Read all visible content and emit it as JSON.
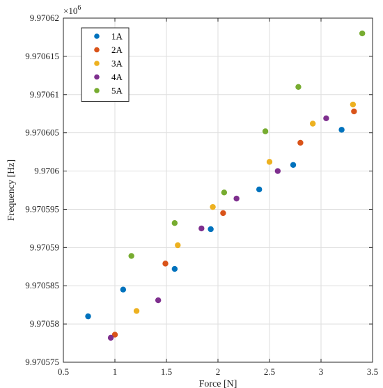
{
  "chart_data": {
    "type": "scatter",
    "xlabel": "Force [N]",
    "ylabel": "Frequency [Hz]",
    "y_multiplier": "×10",
    "y_multiplier_exp": "6",
    "xlim": [
      0.5,
      3.5
    ],
    "ylim": [
      9.970575,
      9.97062
    ],
    "grid": true,
    "legend_position": "top-left",
    "x_ticks": [
      0.5,
      1,
      1.5,
      2,
      2.5,
      3,
      3.5
    ],
    "x_tick_labels": [
      "0.5",
      "1",
      "1.5",
      "2",
      "2.5",
      "3",
      "3.5"
    ],
    "y_ticks": [
      9.970575,
      9.97058,
      9.970585,
      9.97059,
      9.970595,
      9.9706,
      9.970605,
      9.97061,
      9.970615,
      9.97062
    ],
    "y_tick_labels": [
      "9.970575",
      "9.97058",
      "9.970585",
      "9.97059",
      "9.970595",
      "9.9706",
      "9.970605",
      "9.97061",
      "9.970615",
      "9.97062"
    ],
    "series": [
      {
        "name": "1A",
        "color": "#0072BD",
        "points": [
          [
            0.74,
            9.970581
          ],
          [
            1.08,
            9.9705845
          ],
          [
            1.58,
            9.9705872
          ],
          [
            1.93,
            9.9705924
          ],
          [
            2.4,
            9.9705976
          ],
          [
            2.73,
            9.9706008
          ],
          [
            3.2,
            9.9706054
          ]
        ]
      },
      {
        "name": "2A",
        "color": "#D95319",
        "points": [
          [
            1.0,
            9.9705786
          ],
          [
            1.49,
            9.9705879
          ],
          [
            2.05,
            9.9705945
          ],
          [
            2.8,
            9.9706037
          ],
          [
            3.32,
            9.9706078
          ]
        ]
      },
      {
        "name": "3A",
        "color": "#EDB120",
        "points": [
          [
            1.21,
            9.9705817
          ],
          [
            1.61,
            9.9705903
          ],
          [
            1.95,
            9.9705953
          ],
          [
            2.5,
            9.9706012
          ],
          [
            2.92,
            9.9706062
          ],
          [
            3.31,
            9.9706087
          ]
        ]
      },
      {
        "name": "4A",
        "color": "#7E2F8E",
        "points": [
          [
            0.96,
            9.9705782
          ],
          [
            1.42,
            9.9705831
          ],
          [
            1.84,
            9.9705925
          ],
          [
            2.18,
            9.9705964
          ],
          [
            2.58,
            9.9706
          ],
          [
            3.05,
            9.9706069
          ]
        ]
      },
      {
        "name": "5A",
        "color": "#77AC30",
        "points": [
          [
            1.16,
            9.9705889
          ],
          [
            1.58,
            9.9705932
          ],
          [
            2.06,
            9.9705972
          ],
          [
            2.46,
            9.9706052
          ],
          [
            2.78,
            9.970611
          ],
          [
            3.4,
            9.970618
          ]
        ]
      }
    ]
  }
}
